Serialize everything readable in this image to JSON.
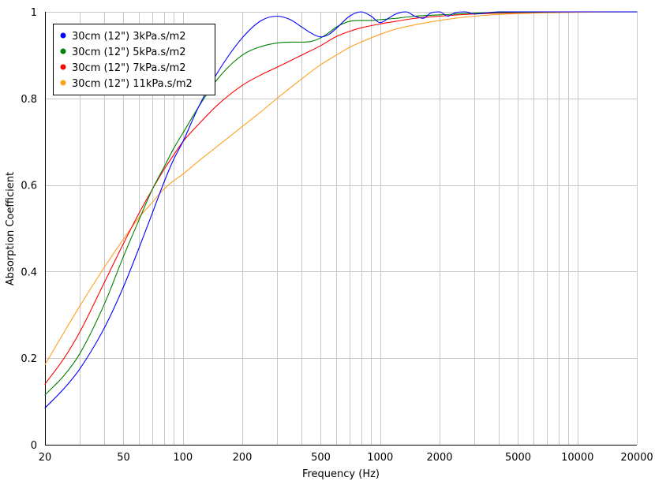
{
  "chart_data": {
    "type": "line",
    "xlabel": "Frequency (Hz)",
    "ylabel": "Absorption Coefficient",
    "x_scale": "log",
    "xlim": [
      20,
      20000
    ],
    "ylim": [
      0,
      1
    ],
    "grid": true,
    "legend_position": "top-left",
    "x_ticks": [
      20,
      50,
      100,
      200,
      500,
      1000,
      2000,
      5000,
      10000,
      20000
    ],
    "x_tick_labels": [
      "20",
      "50",
      "100",
      "200",
      "500",
      "1000",
      "2000",
      "5000",
      "10000",
      "20000"
    ],
    "x_minor_gridlines": [
      30,
      40,
      60,
      70,
      80,
      90,
      300,
      400,
      600,
      700,
      800,
      900,
      3000,
      4000,
      6000,
      7000,
      8000,
      9000
    ],
    "y_ticks": [
      0,
      0.2,
      0.4,
      0.6,
      0.8,
      1
    ],
    "y_tick_labels": [
      "0",
      "0.2",
      "0.4",
      "0.6",
      "0.8",
      "1"
    ],
    "series": [
      {
        "name": "30cm (12\") 3kPa.s/m2",
        "color": "#0000ff",
        "x": [
          20,
          25,
          30,
          40,
          50,
          60,
          70,
          80,
          90,
          100,
          120,
          150,
          200,
          250,
          300,
          350,
          400,
          450,
          500,
          550,
          600,
          700,
          800,
          900,
          1000,
          1100,
          1200,
          1350,
          1500,
          1650,
          1800,
          2000,
          2200,
          2400,
          2700,
          3000,
          4000,
          5000,
          7000,
          10000,
          20000
        ],
        "y": [
          0.085,
          0.13,
          0.175,
          0.27,
          0.365,
          0.455,
          0.535,
          0.605,
          0.66,
          0.7,
          0.78,
          0.86,
          0.94,
          0.98,
          0.99,
          0.982,
          0.965,
          0.95,
          0.942,
          0.948,
          0.962,
          0.99,
          1.0,
          0.99,
          0.975,
          0.985,
          0.995,
          1.0,
          0.99,
          0.985,
          0.997,
          1.0,
          0.99,
          0.998,
          1.0,
          0.995,
          1.0,
          1.0,
          1.0,
          1.0,
          1.0
        ]
      },
      {
        "name": "30cm (12\") 5kPa.s/m2",
        "color": "#007f00",
        "x": [
          20,
          25,
          30,
          40,
          50,
          60,
          70,
          80,
          90,
          100,
          120,
          150,
          200,
          250,
          300,
          350,
          400,
          450,
          500,
          550,
          600,
          700,
          800,
          900,
          1000,
          1200,
          1500,
          2000,
          3000,
          5000,
          10000,
          20000
        ],
        "y": [
          0.115,
          0.16,
          0.21,
          0.325,
          0.435,
          0.52,
          0.59,
          0.64,
          0.685,
          0.72,
          0.78,
          0.845,
          0.9,
          0.92,
          0.928,
          0.93,
          0.93,
          0.932,
          0.94,
          0.952,
          0.965,
          0.978,
          0.98,
          0.98,
          0.982,
          0.985,
          0.99,
          0.993,
          0.997,
          0.999,
          1.0,
          1.0
        ]
      },
      {
        "name": "30cm (12\") 7kPa.s/m2",
        "color": "#ff0000",
        "x": [
          20,
          25,
          30,
          40,
          50,
          60,
          70,
          80,
          90,
          100,
          120,
          150,
          200,
          250,
          300,
          400,
          500,
          600,
          700,
          800,
          1000,
          1200,
          1500,
          2000,
          3000,
          5000,
          10000,
          20000
        ],
        "y": [
          0.14,
          0.2,
          0.26,
          0.375,
          0.465,
          0.535,
          0.59,
          0.635,
          0.67,
          0.7,
          0.74,
          0.785,
          0.83,
          0.855,
          0.872,
          0.9,
          0.922,
          0.943,
          0.955,
          0.963,
          0.972,
          0.978,
          0.985,
          0.99,
          0.995,
          0.998,
          1.0,
          1.0
        ]
      },
      {
        "name": "30cm (12\") 11kPa.s/m2",
        "color": "#ffa020",
        "x": [
          20,
          25,
          30,
          40,
          50,
          60,
          70,
          80,
          90,
          100,
          120,
          150,
          200,
          250,
          300,
          400,
          500,
          600,
          700,
          800,
          1000,
          1200,
          1500,
          2000,
          3000,
          5000,
          10000,
          20000
        ],
        "y": [
          0.185,
          0.26,
          0.32,
          0.41,
          0.475,
          0.525,
          0.56,
          0.59,
          0.61,
          0.625,
          0.655,
          0.69,
          0.735,
          0.77,
          0.8,
          0.845,
          0.878,
          0.9,
          0.918,
          0.93,
          0.948,
          0.96,
          0.97,
          0.98,
          0.99,
          0.996,
          0.999,
          1.0
        ]
      }
    ]
  }
}
